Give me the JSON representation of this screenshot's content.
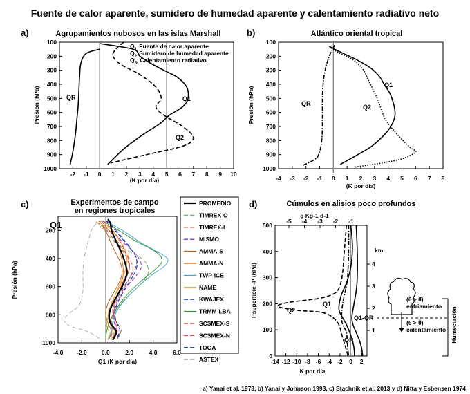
{
  "figure": {
    "title": "Fuente de calor aparente, sumidero de humedad aparente y calentamiento radiativo neto",
    "citation": "a) Yanai et al. 1973, b) Yanai y Johnson 1993, c) Stachnik et al. 2013 y d) Nitta y Esbensen 1974"
  },
  "chart_data": [
    {
      "panel": "a)",
      "type": "line",
      "title": "Agrupamientos nubosos en las islas Marshall",
      "xlabel": "(K por día)",
      "ylabel": "Presión (hPa)",
      "xlim": [
        -3,
        10
      ],
      "ylim": [
        1000,
        100
      ],
      "xticks": [
        "-2",
        "-1",
        "0",
        "1",
        "2",
        "3",
        "4",
        "5",
        "6",
        "7",
        "8",
        "9",
        "10"
      ],
      "yticks": [
        "100",
        "200",
        "300",
        "400",
        "500",
        "600",
        "700",
        "800",
        "900",
        "1000"
      ],
      "legend": [
        {
          "sym": "Q",
          "sub": "1",
          "text": "Fuente de calor aparente"
        },
        {
          "sym": "Q",
          "sub": "2",
          "text": "Sumidero de humedad aparente"
        },
        {
          "sym": "Q",
          "sub": "R",
          "text": "Calentamiento radiativo"
        }
      ],
      "series": [
        {
          "key": "Q1",
          "label": "Q1",
          "style": "solid",
          "x": [
            0,
            2.5,
            3.0,
            3.8,
            4.8,
            5.8,
            6.5,
            6.6,
            6.2,
            5.2,
            4.5,
            3.2,
            1.8,
            0.6
          ],
          "y": [
            110,
            150,
            200,
            250,
            300,
            350,
            420,
            500,
            560,
            620,
            680,
            760,
            860,
            970
          ]
        },
        {
          "key": "Q2",
          "label": "Q2",
          "style": "dashed",
          "x": [
            1.8,
            1.2,
            1.0,
            1.6,
            3.0,
            4.2,
            4.6,
            4.2,
            4.8,
            6.2,
            7.0,
            6.2,
            3.5,
            0.8
          ],
          "y": [
            100,
            150,
            200,
            260,
            330,
            420,
            500,
            560,
            620,
            700,
            780,
            840,
            900,
            960
          ]
        },
        {
          "key": "QR",
          "label": "QR",
          "style": "solid",
          "x": [
            0,
            -1.0,
            -1.4,
            -1.5,
            -1.55,
            -1.6,
            -1.7,
            -1.8,
            -2.0,
            -2.2
          ],
          "y": [
            150,
            180,
            250,
            350,
            450,
            550,
            650,
            750,
            880,
            970
          ]
        }
      ]
    },
    {
      "panel": "b)",
      "type": "line",
      "title": "Atlántico oriental tropical",
      "xlabel": "(K por día)",
      "ylabel": "Presión (hPa)",
      "xlim": [
        -4,
        8
      ],
      "ylim": [
        1000,
        100
      ],
      "xticks": [
        "-4",
        "-3",
        "-2",
        "-1",
        "0",
        "1",
        "2",
        "3",
        "4",
        "5",
        "6",
        "7",
        "8"
      ],
      "yticks": [
        "100",
        "200",
        "300",
        "400",
        "500",
        "600",
        "700",
        "800",
        "900",
        "1000"
      ],
      "series": [
        {
          "key": "Q1",
          "label": "Q1",
          "style": "solid",
          "x": [
            -0.3,
            0.5,
            1.8,
            2.8,
            3.4,
            3.7,
            4.2,
            4.5,
            4.3,
            3.8,
            2.8,
            1.6,
            0.5
          ],
          "y": [
            130,
            170,
            230,
            290,
            350,
            400,
            480,
            600,
            680,
            750,
            840,
            910,
            970
          ]
        },
        {
          "key": "Q2",
          "label": "Q2",
          "style": "dotted",
          "x": [
            -0.3,
            0.3,
            1.5,
            2.2,
            2.6,
            3.2,
            3.8,
            4.7,
            5.6,
            6.0,
            5.0,
            3.5,
            1.5
          ],
          "y": [
            130,
            170,
            230,
            300,
            380,
            500,
            650,
            760,
            850,
            880,
            930,
            960,
            990
          ]
        },
        {
          "key": "QR",
          "label": "QR",
          "style": "dashdot",
          "x": [
            0.1,
            -0.3,
            -0.6,
            -0.75,
            -0.8,
            -0.8,
            -0.8,
            -0.85,
            -1.0,
            -1.3,
            -2.3
          ],
          "y": [
            120,
            200,
            300,
            400,
            500,
            600,
            700,
            800,
            880,
            930,
            980
          ]
        }
      ]
    },
    {
      "panel": "c)",
      "type": "line",
      "title": "Experimentos de campo",
      "subtitle": "en regiones tropicales",
      "annotation": "Q1",
      "xlabel": "Q1 (K por día)",
      "ylabel": "Presión (hPa)",
      "xlim": [
        -4,
        6
      ],
      "ylim": [
        1000,
        100
      ],
      "xticks": [
        "-4.0",
        "-2.0",
        "0.0",
        "2.0",
        "4.0",
        "6.0"
      ],
      "yticks": [
        "200",
        "400",
        "600",
        "800",
        "1000"
      ],
      "series": [
        {
          "key": "PROM",
          "name": "PROMEDIO",
          "color": "#000000",
          "style": "solid",
          "width": 2.2,
          "x": [
            0.2,
            0.4,
            0.5,
            0.9,
            1.3,
            1.6,
            1.8,
            1.5,
            1.0,
            0.5,
            0.3,
            0.4,
            0.9,
            0.6
          ],
          "y": [
            120,
            150,
            200,
            280,
            350,
            420,
            500,
            580,
            660,
            740,
            800,
            860,
            920,
            980
          ]
        },
        {
          "key": "TO",
          "name": "TIMREX-O",
          "color": "#7fb069",
          "style": "dashed",
          "width": 1,
          "x": [
            -0.4,
            -0.5,
            -0.1,
            0.5,
            1.3,
            2.5,
            3.3,
            3.6,
            3.4,
            2.5,
            1.5,
            0.8,
            0.5,
            0.8
          ],
          "y": [
            130,
            160,
            200,
            260,
            320,
            370,
            420,
            480,
            540,
            620,
            700,
            780,
            860,
            960
          ]
        },
        {
          "key": "TL",
          "name": "TIMREX-L",
          "color": "#a0522d",
          "style": "dashed",
          "width": 1,
          "x": [
            -0.6,
            -0.2,
            0.3,
            0.8,
            1.4,
            1.8,
            2.0,
            1.7,
            1.2,
            0.8,
            0.6,
            0.9,
            1.3,
            1.0
          ],
          "y": [
            130,
            170,
            220,
            280,
            340,
            400,
            470,
            540,
            620,
            700,
            780,
            850,
            910,
            970
          ]
        },
        {
          "key": "MI",
          "name": "MISMO",
          "color": "#8a2be2",
          "style": "dashed",
          "width": 1,
          "x": [
            -0.3,
            0.2,
            0.7,
            1.4,
            2.2,
            2.8,
            3.0,
            2.6,
            1.8,
            1.2,
            0.8,
            0.7,
            0.9,
            0.6
          ],
          "y": [
            130,
            170,
            220,
            280,
            340,
            400,
            460,
            520,
            600,
            680,
            760,
            840,
            910,
            970
          ]
        },
        {
          "key": "AS",
          "name": "AMMA-S",
          "color": "#b5651d",
          "style": "solid",
          "width": 1,
          "x": [
            -0.8,
            -0.3,
            0.1,
            0.4,
            0.8,
            1.2,
            1.4,
            1.2,
            0.7,
            0.2,
            0.0,
            0.2,
            0.5,
            0.3
          ],
          "y": [
            140,
            170,
            220,
            280,
            350,
            420,
            490,
            560,
            640,
            720,
            790,
            860,
            920,
            970
          ]
        },
        {
          "key": "AN",
          "name": "AMMA-N",
          "color": "#e07b2a",
          "style": "solid",
          "width": 1,
          "x": [
            -0.5,
            0.0,
            0.6,
            1.0,
            1.2,
            1.4,
            1.5,
            1.3,
            0.8,
            0.4,
            0.2,
            0.4,
            0.8,
            0.5
          ],
          "y": [
            140,
            180,
            230,
            290,
            350,
            420,
            500,
            580,
            660,
            740,
            810,
            870,
            920,
            970
          ]
        },
        {
          "key": "TW",
          "name": "TWP-ICE",
          "color": "#4aa8c8",
          "style": "solid",
          "width": 1,
          "x": [
            0.0,
            0.8,
            1.8,
            3.0,
            4.3,
            5.2,
            5.0,
            4.0,
            3.0,
            2.0,
            1.2,
            0.7,
            0.5,
            0.3
          ],
          "y": [
            130,
            170,
            220,
            290,
            350,
            400,
            450,
            510,
            580,
            660,
            740,
            820,
            900,
            970
          ]
        },
        {
          "key": "NA",
          "name": "NAME",
          "color": "#f0a020",
          "style": "solid",
          "width": 1,
          "x": [
            -0.2,
            0.3,
            0.9,
            1.4,
            1.7,
            1.8,
            1.6,
            1.2,
            0.8,
            0.5,
            0.2,
            0.1,
            0.3,
            0.2
          ],
          "y": [
            140,
            180,
            240,
            300,
            360,
            430,
            500,
            580,
            660,
            740,
            820,
            880,
            930,
            980
          ]
        },
        {
          "key": "KW",
          "name": "KWAJEX",
          "color": "#3b4cc0",
          "style": "dashed",
          "width": 1,
          "x": [
            0.1,
            0.6,
            1.1,
            1.7,
            2.2,
            2.6,
            2.5,
            2.0,
            1.4,
            0.9,
            0.7,
            0.9,
            1.2,
            1.0
          ],
          "y": [
            130,
            170,
            220,
            280,
            340,
            400,
            470,
            540,
            620,
            700,
            780,
            850,
            910,
            970
          ]
        },
        {
          "key": "TR",
          "name": "TRMM-LBA",
          "color": "#3a9a3a",
          "style": "solid",
          "width": 1,
          "x": [
            -0.3,
            0.5,
            1.5,
            2.6,
            3.8,
            4.6,
            4.7,
            4.0,
            3.0,
            2.0,
            1.2,
            0.6,
            0.2,
            0.0
          ],
          "y": [
            130,
            170,
            220,
            280,
            330,
            380,
            430,
            490,
            560,
            640,
            720,
            800,
            880,
            960
          ]
        },
        {
          "key": "SS",
          "name": "SCSMEX-S",
          "color": "#d9534f",
          "style": "dashed",
          "width": 1,
          "x": [
            -0.2,
            0.3,
            0.8,
            1.2,
            1.6,
            1.9,
            2.0,
            1.6,
            1.2,
            0.8,
            0.6,
            0.5,
            0.6,
            0.4
          ],
          "y": [
            130,
            170,
            220,
            280,
            340,
            400,
            470,
            540,
            620,
            700,
            780,
            850,
            910,
            970
          ]
        },
        {
          "key": "SN",
          "name": "SCSMEX-N",
          "color": "#e8453c",
          "style": "dashed",
          "width": 1,
          "x": [
            -0.4,
            0.0,
            0.5,
            1.0,
            1.5,
            2.0,
            2.3,
            2.0,
            1.5,
            1.0,
            0.7,
            0.8,
            1.0,
            0.7
          ],
          "y": [
            130,
            170,
            220,
            280,
            340,
            400,
            470,
            540,
            620,
            700,
            780,
            850,
            910,
            970
          ]
        },
        {
          "key": "TG",
          "name": "TOGA",
          "color": "#1f2f8f",
          "style": "dashed",
          "width": 1,
          "x": [
            0.0,
            0.5,
            1.0,
            1.6,
            2.2,
            2.6,
            2.6,
            2.2,
            1.6,
            1.1,
            0.8,
            0.9,
            1.2,
            0.9
          ],
          "y": [
            130,
            170,
            220,
            280,
            340,
            400,
            470,
            540,
            620,
            700,
            780,
            850,
            910,
            970
          ]
        },
        {
          "key": "AX",
          "name": "ASTEX",
          "color": "#b0b0b0",
          "style": "dashed",
          "width": 1,
          "x": [
            -0.8,
            -1.2,
            -1.4,
            -1.6,
            -1.8,
            -1.9,
            -1.9,
            -1.9,
            -2.0,
            -2.3,
            -3.2,
            -3.5,
            -3.0,
            -1.5,
            -0.5
          ],
          "y": [
            150,
            200,
            260,
            320,
            400,
            480,
            560,
            620,
            680,
            740,
            800,
            840,
            880,
            920,
            970
          ]
        }
      ]
    },
    {
      "panel": "d)",
      "type": "line",
      "title": "Cúmulos en alisios poco profundos",
      "xlabel": "K por día",
      "ylabel": "Psuperficie -P (hPa)",
      "top_xlabel": "g Kg-1 d-1",
      "right_axis": "km",
      "xlim": [
        -14,
        3
      ],
      "ylim": [
        0,
        500
      ],
      "xticks": [
        "-14",
        "-12",
        "-10",
        "-8",
        "-6",
        "-4",
        "-2",
        "0",
        "2"
      ],
      "top_ticks": [
        "-5",
        "-4",
        "-3",
        "-2",
        "-1"
      ],
      "yticks": [
        "0",
        "100",
        "200",
        "300",
        "400",
        "500"
      ],
      "km_ticks": [
        "1",
        "2",
        "3",
        "4"
      ],
      "annotations": [
        "Q1",
        "Q2",
        "Q1-QR",
        "QR"
      ],
      "inset_labels": {
        "left": "enfriamiento",
        "right": "calentamiento",
        "side": "Humectación"
      },
      "series": [
        {
          "key": "Q1",
          "style": "solid",
          "x": [
            0.0,
            0.3,
            0.0,
            -0.8,
            -1.8,
            -2.2,
            -1.6,
            -0.8,
            -0.2,
            0.3,
            0.6,
            0.7
          ],
          "y": [
            500,
            420,
            340,
            280,
            230,
            180,
            150,
            120,
            90,
            60,
            30,
            0
          ]
        },
        {
          "key": "Q2",
          "style": "dashed",
          "x": [
            -0.8,
            -1.2,
            -1.5,
            -2.0,
            -3.0,
            -6.0,
            -11.5,
            -13.5,
            -10.0,
            -5.0,
            -2.5,
            -1.5,
            -0.5
          ],
          "y": [
            500,
            400,
            320,
            270,
            240,
            220,
            205,
            190,
            175,
            165,
            130,
            70,
            0
          ]
        },
        {
          "key": "Q1QR",
          "style": "solid",
          "x": [
            1.0,
            1.2,
            1.2,
            1.0,
            0.6,
            0.2,
            0.4,
            1.0,
            1.6,
            2.0,
            2.2
          ],
          "y": [
            500,
            400,
            300,
            250,
            200,
            150,
            120,
            90,
            60,
            30,
            0
          ]
        },
        {
          "key": "QR",
          "style": "dashdot",
          "x": [
            -0.4,
            -0.4,
            -0.6,
            -1.0,
            -1.5,
            -1.7,
            -1.5,
            -0.8,
            -0.6,
            -0.4
          ],
          "y": [
            500,
            400,
            300,
            250,
            200,
            150,
            120,
            90,
            40,
            0
          ]
        }
      ]
    }
  ]
}
